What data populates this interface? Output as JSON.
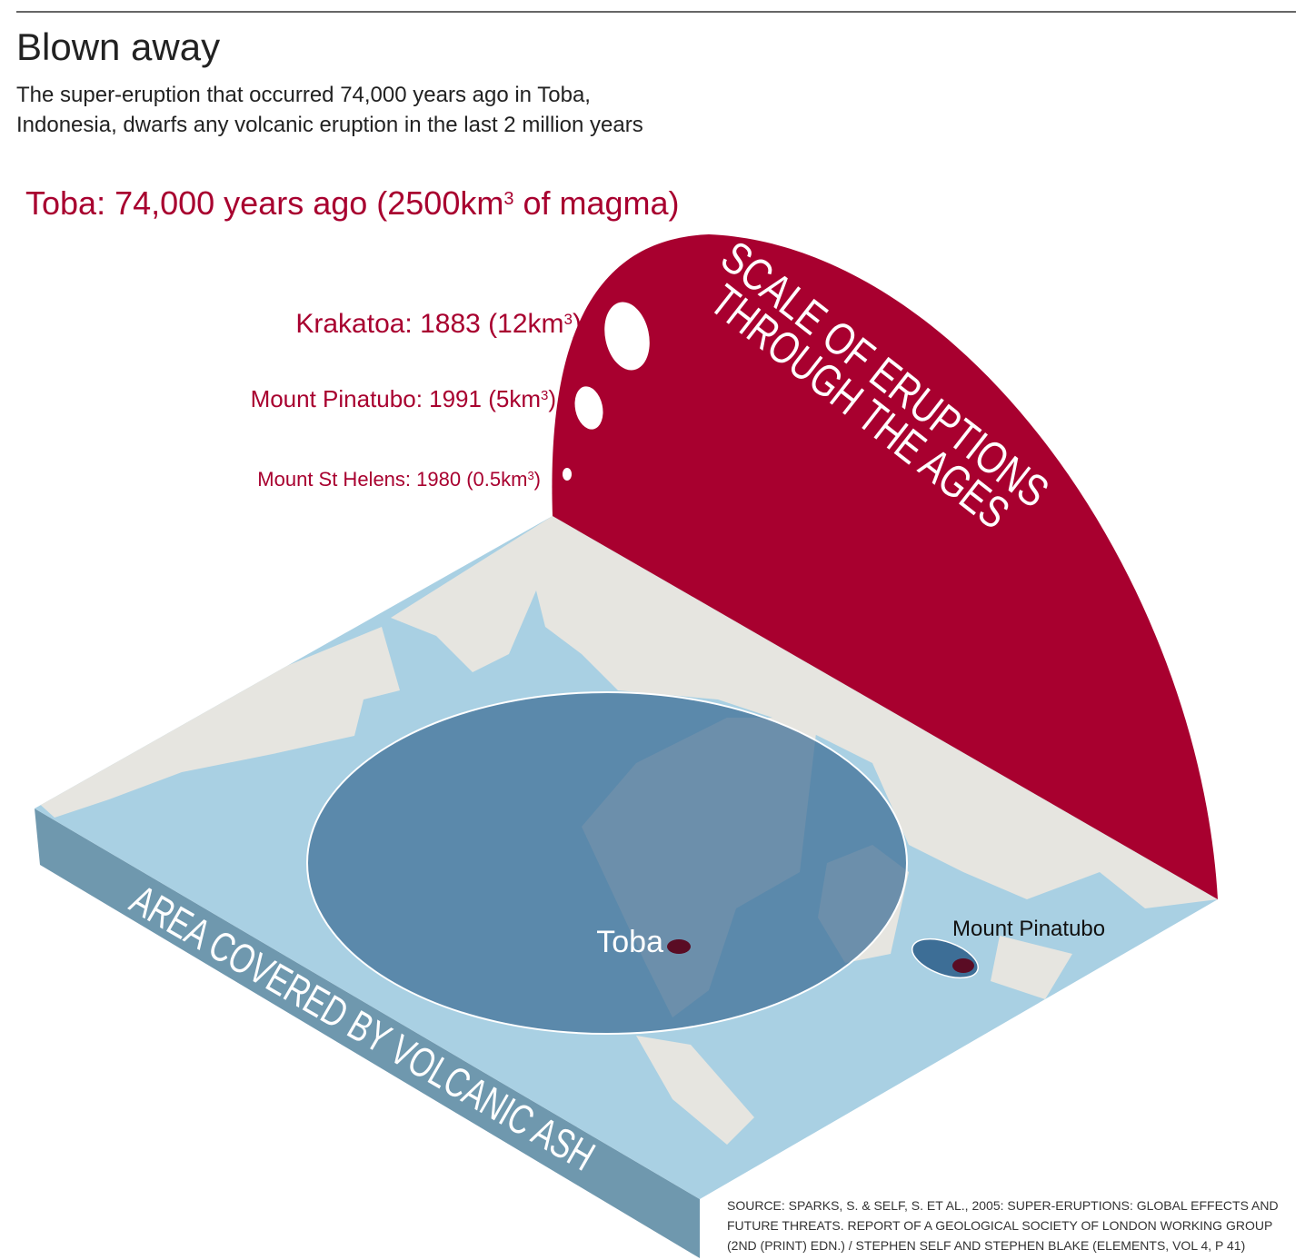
{
  "header": {
    "title": "Blown away",
    "subtitle_lines": [
      "The super-eruption that occurred 74,000 years ago in Toba,",
      "Indonesia, dwarfs any volcanic eruption in the last 2 million years"
    ]
  },
  "eruptions": [
    {
      "label": "Toba: 74,000 years ago (2500km",
      "superscript": "3",
      "suffix": " of magma)"
    },
    {
      "label": "Krakatoa: 1883 (12km",
      "superscript": "3",
      "suffix": ")"
    },
    {
      "label": "Mount Pinatubo: 1991 (5km",
      "superscript": "3",
      "suffix": ")"
    },
    {
      "label": "Mount St Helens: 1980 (0.5km",
      "superscript": "3",
      "suffix": ")"
    }
  ],
  "scale_panel": {
    "lines": [
      "SCALE OF ERUPTIONS",
      "THROUGH THE AGES"
    ]
  },
  "map": {
    "side_label": "AREA COVERED BY VOLCANIC ASH",
    "labels": [
      "Toba",
      "Mount Pinatubo"
    ]
  },
  "source": {
    "lines": [
      "SOURCE: SPARKS, S. & SELF, S. ET AL., 2005: SUPER-ERUPTIONS: GLOBAL EFFECTS AND",
      "FUTURE THREATS. REPORT OF A GEOLOGICAL SOCIETY OF LONDON WORKING GROUP",
      "(2ND (PRINT) EDN.) / STEPHEN SELF AND STEPHEN BLAKE (ELEMENTS, VOL 4, P 41)"
    ]
  }
}
